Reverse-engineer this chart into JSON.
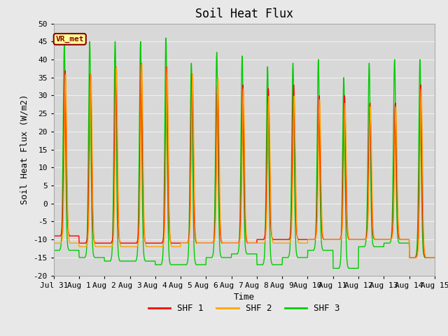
{
  "title": "Soil Heat Flux",
  "xlabel": "Time",
  "ylabel": "Soil Heat Flux (W/m2)",
  "ylim": [
    -20,
    50
  ],
  "yticks": [
    -20,
    -15,
    -10,
    -5,
    0,
    5,
    10,
    15,
    20,
    25,
    30,
    35,
    40,
    45,
    50
  ],
  "fig_bg": "#e8e8e8",
  "plot_bg": "#d8d8d8",
  "grid_color": "#f0f0f0",
  "shf1_color": "#ff0000",
  "shf2_color": "#ffa500",
  "shf3_color": "#00cc00",
  "legend_label1": "SHF 1",
  "legend_label2": "SHF 2",
  "legend_label3": "SHF 3",
  "annotation_text": "VR_met",
  "annotation_color": "#8b0000",
  "annotation_bg": "#ffff99",
  "n_days": 15,
  "day_labels": [
    "Jul 31",
    "Aug 1",
    "Aug 2",
    "Aug 3",
    "Aug 4",
    "Aug 5",
    "Aug 6",
    "Aug 7",
    "Aug 8",
    "Aug 9",
    "Aug 10",
    "Aug 11",
    "Aug 12",
    "Aug 13",
    "Aug 14",
    "Aug 15"
  ],
  "shf1_peaks": [
    37,
    36,
    38,
    39,
    38,
    36,
    33,
    33,
    32,
    33,
    30,
    30,
    28,
    28,
    33
  ],
  "shf2_peaks": [
    36,
    36,
    38,
    39,
    38,
    36,
    35,
    32,
    30,
    30,
    29,
    28,
    27,
    27,
    32
  ],
  "shf3_peaks": [
    44,
    45,
    45,
    45,
    46,
    39,
    42,
    41,
    38,
    39,
    40,
    35,
    39,
    40,
    40
  ],
  "shf1_troughs": [
    -9,
    -11,
    -11,
    -11,
    -11,
    -11,
    -11,
    -11,
    -10,
    -10,
    -10,
    -10,
    -10,
    -10,
    -15
  ],
  "shf2_troughs": [
    -11,
    -12,
    -12,
    -12,
    -12,
    -11,
    -11,
    -11,
    -11,
    -11,
    -10,
    -10,
    -10,
    -10,
    -15
  ],
  "shf3_troughs": [
    -13,
    -15,
    -16,
    -16,
    -17,
    -17,
    -15,
    -14,
    -17,
    -15,
    -13,
    -18,
    -12,
    -11,
    -15
  ],
  "title_fontsize": 12,
  "axis_fontsize": 9,
  "tick_fontsize": 8,
  "line_width": 1.0
}
